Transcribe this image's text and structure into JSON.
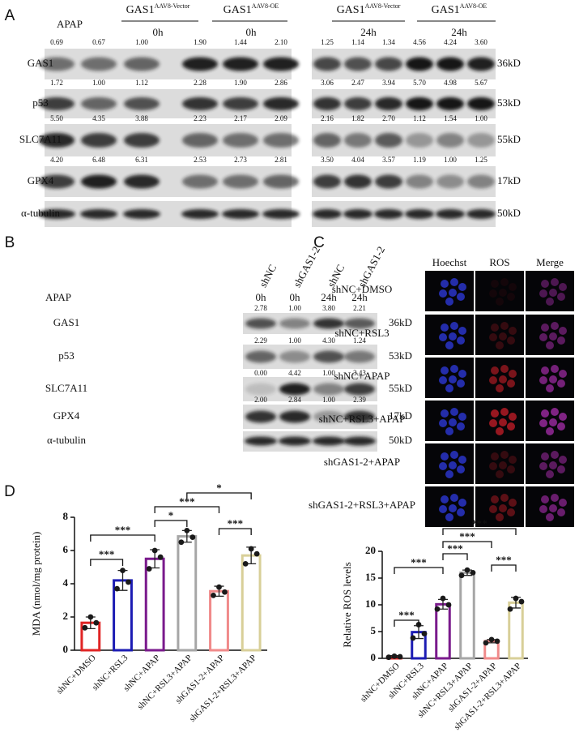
{
  "panel_labels": [
    "A",
    "B",
    "C",
    "D"
  ],
  "panel_a": {
    "treatment": "APAP",
    "groups": [
      {
        "gene": "GAS1",
        "tag": "AAV8-Vector",
        "time": "0h"
      },
      {
        "gene": "GAS1",
        "tag": "AAV8-OE",
        "time": "0h"
      },
      {
        "gene": "GAS1",
        "tag": "AAV8-Vector",
        "time": "24h"
      },
      {
        "gene": "GAS1",
        "tag": "AAV8-OE",
        "time": "24h"
      }
    ],
    "rows": [
      {
        "label": "GAS1",
        "size": "36kD",
        "left": [
          "0.69",
          "0.67",
          "1.00",
          "1.90",
          "1.44",
          "2.10"
        ],
        "right": [
          "1.25",
          "1.14",
          "1.34",
          "4.56",
          "4.24",
          "3.60"
        ]
      },
      {
        "label": "p53",
        "size": "53kD",
        "left": [
          "1.72",
          "1.00",
          "1.12",
          "2.28",
          "1.90",
          "2.86"
        ],
        "right": [
          "3.06",
          "2.47",
          "3.94",
          "5.70",
          "4.98",
          "5.67"
        ]
      },
      {
        "label": "SLC7A11",
        "size": "55kD",
        "left": [
          "5.50",
          "4.35",
          "3.88",
          "2.23",
          "2.17",
          "2.09"
        ],
        "right": [
          "2.16",
          "1.82",
          "2.70",
          "1.12",
          "1.54",
          "1.00"
        ]
      },
      {
        "label": "GPX4",
        "size": "17kD",
        "left": [
          "4.20",
          "6.48",
          "6.31",
          "2.53",
          "2.73",
          "2.81"
        ],
        "right": [
          "3.50",
          "4.04",
          "3.57",
          "1.19",
          "1.00",
          "1.25"
        ]
      }
    ],
    "loading": {
      "label": "α-tubulin",
      "size": "50kD"
    }
  },
  "panel_b": {
    "treatment": "APAP",
    "lanes": [
      "shNC",
      "shGAS1-2",
      "shNC",
      "shGAS1-2"
    ],
    "times": [
      "0h",
      "0h",
      "24h",
      "24h"
    ],
    "rows": [
      {
        "label": "GAS1",
        "size": "36kD",
        "quant": [
          "2.78",
          "1.00",
          "3.80",
          "2.21"
        ]
      },
      {
        "label": "p53",
        "size": "53kD",
        "quant": [
          "2.29",
          "1.00",
          "4.30",
          "1.24"
        ]
      },
      {
        "label": "SLC7A11",
        "size": "55kD",
        "quant": [
          "0.00",
          "4.42",
          "1.00",
          "3.43"
        ]
      },
      {
        "label": "GPX4",
        "size": "17kD",
        "quant": [
          "2.00",
          "2.84",
          "1.00",
          "2.39"
        ]
      }
    ],
    "loading": {
      "label": "α-tubulin",
      "size": "50kD"
    }
  },
  "panel_c": {
    "columns": [
      "Hoechst",
      "ROS",
      "Merge"
    ],
    "rows": [
      "shNC+DMSO",
      "shNC+RSL3",
      "shNC+APAP",
      "shNC+RSL3+APAP",
      "shGAS1-2+APAP",
      "shGAS1-2+RSL3+APAP"
    ]
  },
  "chart_data": [
    {
      "type": "bar",
      "ylabel": "MDA (nmol/mg protein)",
      "categories": [
        "shNC+DMSO",
        "shNC+RSL3",
        "shNC+APAP",
        "shNC+RSL3+APAP",
        "shGAS1-2+APAP",
        "shGAS1-2+RSL3+APAP"
      ],
      "values": [
        1.65,
        4.2,
        5.5,
        6.85,
        3.55,
        5.7
      ],
      "errors": [
        0.35,
        0.6,
        0.55,
        0.35,
        0.3,
        0.5
      ],
      "points": [
        [
          1.35,
          2.0,
          1.65
        ],
        [
          3.7,
          4.8,
          4.1
        ],
        [
          4.9,
          6.0,
          5.6
        ],
        [
          6.5,
          7.2,
          6.8
        ],
        [
          3.3,
          3.8,
          3.5
        ],
        [
          5.2,
          6.1,
          5.8
        ]
      ],
      "colors": [
        "#e02424",
        "#1c1cb4",
        "#7a1a8c",
        "#a6a6a6",
        "#f08a8a",
        "#d8cf98"
      ],
      "ylim": [
        0,
        8
      ],
      "yticks": [
        0,
        2,
        4,
        6,
        8
      ],
      "comparisons": [
        {
          "pair": [
            0,
            1
          ],
          "label": "***"
        },
        {
          "pair": [
            0,
            2
          ],
          "label": "***"
        },
        {
          "pair": [
            2,
            3
          ],
          "label": "*"
        },
        {
          "pair": [
            2,
            4
          ],
          "label": "***"
        },
        {
          "pair": [
            3,
            5
          ],
          "label": "*"
        },
        {
          "pair": [
            4,
            5
          ],
          "label": "***"
        }
      ]
    },
    {
      "type": "bar",
      "ylabel": "Relative ROS levels",
      "categories": [
        "shNC+DMSO",
        "shNC+RSL3",
        "shNC+APAP",
        "shNC+RSL3+APAP",
        "shGAS1-2+APAP",
        "shGAS1-2+RSL3+APAP"
      ],
      "values": [
        0.3,
        4.9,
        10.1,
        16,
        3.2,
        10.4
      ],
      "errors": [
        0.2,
        1.2,
        0.9,
        0.5,
        0.3,
        1.0
      ],
      "points": [
        [
          0.2,
          0.4,
          0.3
        ],
        [
          3.8,
          6.3,
          4.6
        ],
        [
          9.2,
          11.2,
          10
        ],
        [
          15.5,
          16.5,
          16
        ],
        [
          2.9,
          3.5,
          3.2
        ],
        [
          9.2,
          11.2,
          10.6
        ]
      ],
      "colors": [
        "#e02424",
        "#1c1cb4",
        "#7a1a8c",
        "#a6a6a6",
        "#f08a8a",
        "#d8cf98"
      ],
      "ylim": [
        0,
        20
      ],
      "yticks": [
        0,
        5,
        10,
        15,
        20
      ],
      "comparisons": [
        {
          "pair": [
            0,
            1
          ],
          "label": "***"
        },
        {
          "pair": [
            0,
            2
          ],
          "label": "***"
        },
        {
          "pair": [
            2,
            3
          ],
          "label": "***"
        },
        {
          "pair": [
            2,
            4
          ],
          "label": "***"
        },
        {
          "pair": [
            2,
            5
          ],
          "label": "***"
        },
        {
          "pair": [
            4,
            5
          ],
          "label": "***"
        }
      ]
    }
  ]
}
